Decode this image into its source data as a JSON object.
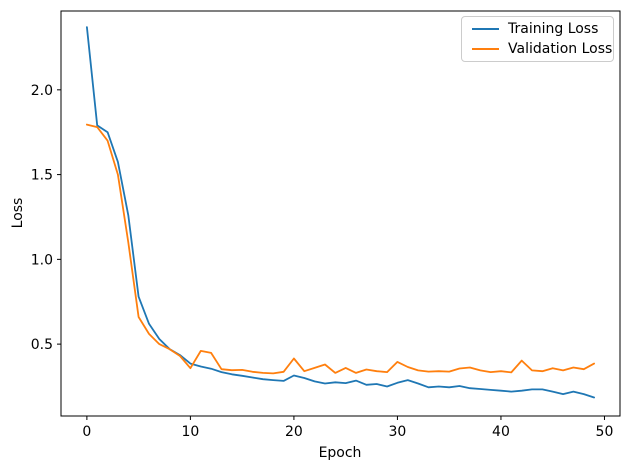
{
  "figure": {
    "background": "#ffffff",
    "axis_color": "#000000",
    "tick_label_color": "#000000"
  },
  "chart_data": {
    "type": "line",
    "title": "",
    "xlabel": "Epoch",
    "ylabel": "Loss",
    "grid": false,
    "legend_position": "upper right",
    "xlim": [
      -2.5,
      51.5
    ],
    "ylim": [
      0.076,
      2.465
    ],
    "xticks": {
      "values": [
        0,
        10,
        20,
        30,
        40,
        50
      ],
      "labels": [
        "0",
        "10",
        "20",
        "30",
        "40",
        "50"
      ]
    },
    "yticks": {
      "values": [
        0.5,
        1.0,
        1.5,
        2.0
      ],
      "labels": [
        "0.5",
        "1.0",
        "1.5",
        "2.0"
      ]
    },
    "x": [
      0,
      1,
      2,
      3,
      4,
      5,
      6,
      7,
      8,
      9,
      10,
      11,
      12,
      13,
      14,
      15,
      16,
      17,
      18,
      19,
      20,
      21,
      22,
      23,
      24,
      25,
      26,
      27,
      28,
      29,
      30,
      31,
      32,
      33,
      34,
      35,
      36,
      37,
      38,
      39,
      40,
      41,
      42,
      43,
      44,
      45,
      46,
      47,
      48,
      49
    ],
    "series": [
      {
        "name": "Training Loss",
        "color": "#1f77b4",
        "values": [
          2.37,
          1.79,
          1.75,
          1.575,
          1.26,
          0.78,
          0.62,
          0.53,
          0.47,
          0.435,
          0.385,
          0.368,
          0.355,
          0.335,
          0.322,
          0.313,
          0.303,
          0.293,
          0.288,
          0.283,
          0.315,
          0.3,
          0.28,
          0.268,
          0.275,
          0.27,
          0.285,
          0.26,
          0.265,
          0.25,
          0.272,
          0.288,
          0.268,
          0.245,
          0.25,
          0.245,
          0.253,
          0.24,
          0.235,
          0.23,
          0.225,
          0.22,
          0.225,
          0.233,
          0.233,
          0.22,
          0.205,
          0.22,
          0.205,
          0.185
        ]
      },
      {
        "name": "Validation Loss",
        "color": "#ff7f0e",
        "values": [
          1.795,
          1.78,
          1.7,
          1.5,
          1.1,
          0.66,
          0.56,
          0.5,
          0.47,
          0.43,
          0.358,
          0.46,
          0.448,
          0.352,
          0.346,
          0.348,
          0.337,
          0.33,
          0.327,
          0.337,
          0.415,
          0.34,
          0.36,
          0.38,
          0.33,
          0.36,
          0.33,
          0.35,
          0.34,
          0.335,
          0.395,
          0.365,
          0.345,
          0.338,
          0.34,
          0.338,
          0.356,
          0.362,
          0.345,
          0.335,
          0.34,
          0.333,
          0.403,
          0.345,
          0.34,
          0.358,
          0.345,
          0.362,
          0.352,
          0.385
        ]
      }
    ]
  }
}
